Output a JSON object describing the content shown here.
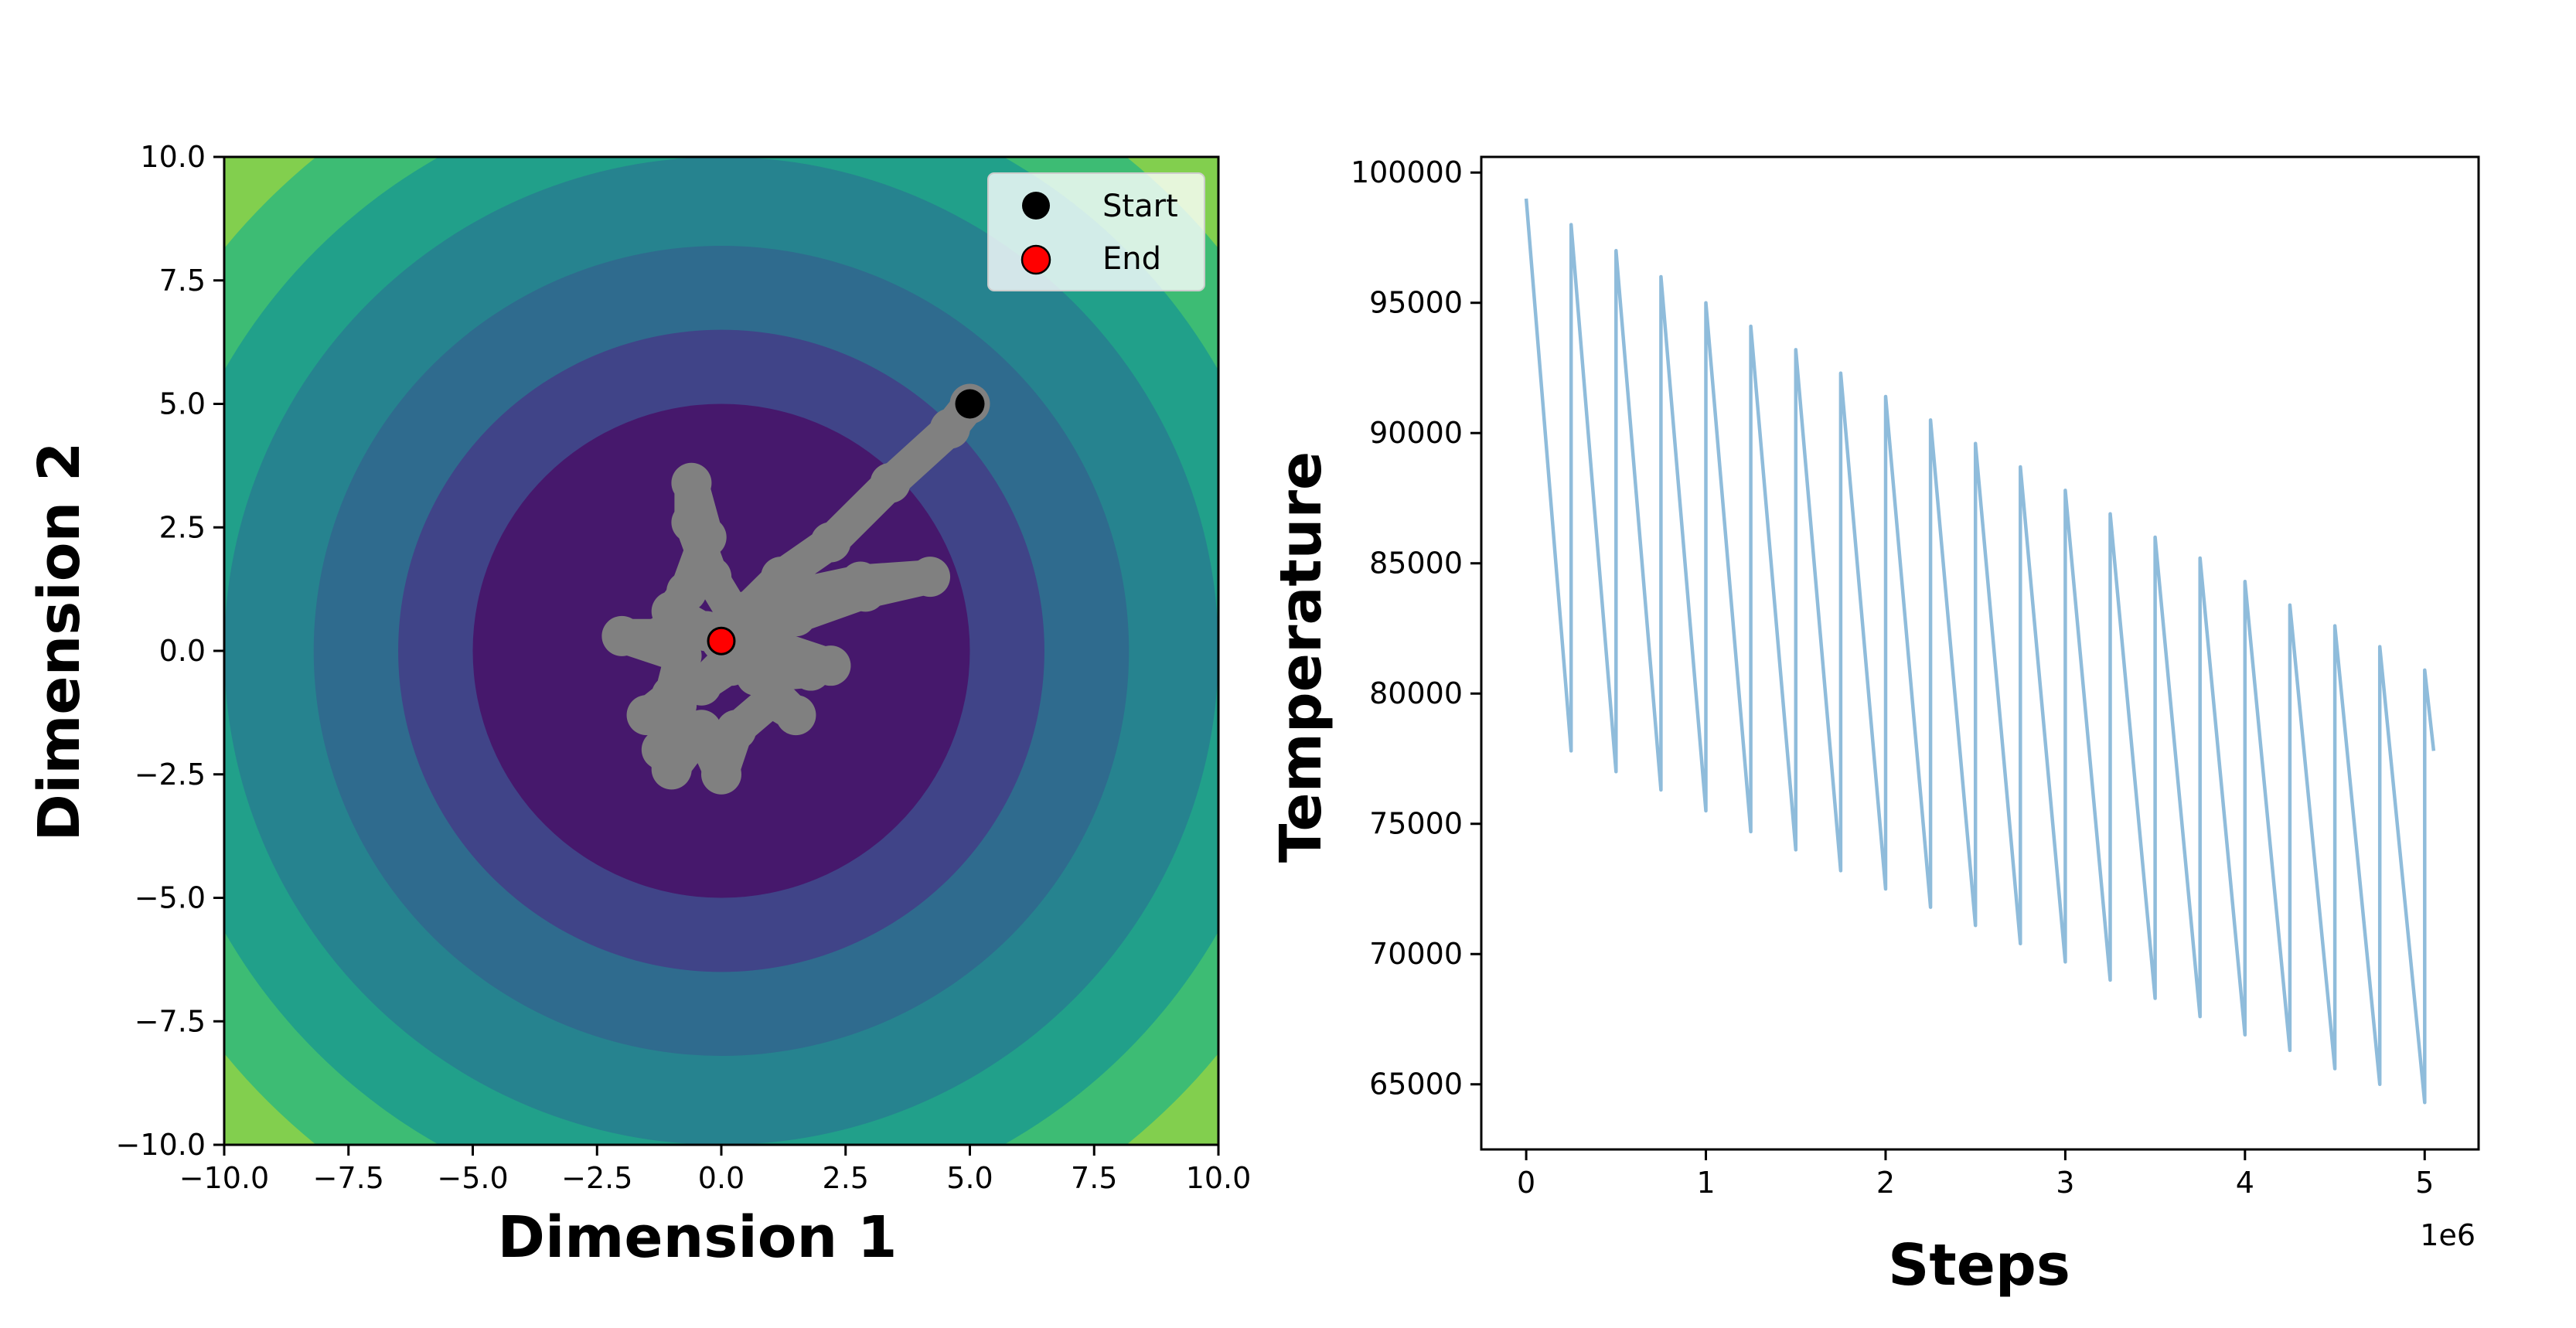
{
  "chart_data": [
    {
      "type": "contour",
      "xlabel": "Dimension 1",
      "ylabel": "Dimension 2",
      "xlim": [
        -10,
        10
      ],
      "ylim": [
        -10,
        10
      ],
      "xticks": [
        "−10.0",
        "−7.5",
        "−5.0",
        "−2.5",
        "0.0",
        "2.5",
        "5.0",
        "7.5",
        "10.0"
      ],
      "yticks": [
        "−10.0",
        "−7.5",
        "−5.0",
        "−2.5",
        "0.0",
        "2.5",
        "5.0",
        "7.5",
        "10.0"
      ],
      "xtick_values": [
        -10,
        -7.5,
        -5,
        -2.5,
        0,
        2.5,
        5,
        7.5,
        10
      ],
      "ytick_values": [
        -10,
        -7.5,
        -5,
        -2.5,
        0,
        2.5,
        5,
        7.5,
        10
      ],
      "colormap": "viridis",
      "contour_level_radii": [
        14.1,
        12.9,
        11.5,
        10,
        8.2,
        6.5,
        5
      ],
      "contour_colors": [
        "#fde725",
        "#7ad151",
        "#22a884",
        "#2a788e",
        "#414487",
        "#3b528b",
        "#440154"
      ],
      "contour_fills": [
        "#e6e125",
        "#82cf4e",
        "#3dbc74",
        "#21a08a",
        "#26838f",
        "#2f6b8e",
        "#404488",
        "#46186c"
      ],
      "path_color": "#808080",
      "path": [
        [
          5.0,
          5.0
        ],
        [
          4.6,
          4.5
        ],
        [
          3.4,
          3.4
        ],
        [
          2.2,
          2.2
        ],
        [
          1.2,
          1.5
        ],
        [
          0.5,
          0.8
        ],
        [
          1.4,
          1.1
        ],
        [
          2.8,
          1.4
        ],
        [
          4.2,
          1.5
        ],
        [
          2.9,
          1.2
        ],
        [
          1.5,
          0.7
        ],
        [
          0.4,
          0.5
        ],
        [
          -0.2,
          1.5
        ],
        [
          -0.6,
          2.6
        ],
        [
          -0.6,
          3.4
        ],
        [
          -0.3,
          2.3
        ],
        [
          -0.7,
          1.2
        ],
        [
          -1.0,
          0.8
        ],
        [
          -0.3,
          0.4
        ],
        [
          -1.2,
          0.3
        ],
        [
          -2.0,
          0.3
        ],
        [
          -0.8,
          -0.1
        ],
        [
          -1.0,
          -0.9
        ],
        [
          -1.5,
          -1.3
        ],
        [
          -0.9,
          -1.1
        ],
        [
          -1.2,
          -2.0
        ],
        [
          -1.0,
          -2.4
        ],
        [
          -0.4,
          -1.6
        ],
        [
          0.0,
          -2.5
        ],
        [
          0.3,
          -1.6
        ],
        [
          1.0,
          -1.0
        ],
        [
          1.5,
          -1.3
        ],
        [
          0.7,
          -0.5
        ],
        [
          1.8,
          -0.4
        ],
        [
          2.2,
          -0.3
        ],
        [
          1.0,
          0.1
        ],
        [
          0.3,
          0.0
        ],
        [
          -0.4,
          -0.7
        ],
        [
          0.2,
          -0.3
        ],
        [
          0.0,
          0.2
        ]
      ],
      "series": [
        {
          "name": "Start",
          "marker_color": "#000000",
          "x": [
            5.0
          ],
          "y": [
            5.0
          ]
        },
        {
          "name": "End",
          "marker_color": "#ff0000",
          "x": [
            0.0
          ],
          "y": [
            0.2
          ]
        }
      ],
      "legend": "top-right"
    },
    {
      "type": "line",
      "xlabel": "Steps",
      "ylabel": "Temperature",
      "xlim": [
        -250000,
        5300000
      ],
      "ylim": [
        62500,
        100600
      ],
      "xticks": [
        "0",
        "1",
        "2",
        "3",
        "4",
        "5"
      ],
      "xtick_values": [
        0,
        1000000,
        2000000,
        3000000,
        4000000,
        5000000
      ],
      "x_offset_label": "1e6",
      "yticks": [
        "65000",
        "70000",
        "75000",
        "80000",
        "85000",
        "90000",
        "95000",
        "100000"
      ],
      "ytick_values": [
        65000,
        70000,
        75000,
        80000,
        85000,
        90000,
        95000,
        100000
      ],
      "line_color": "#8fbcdb",
      "cycle_length": 250000,
      "peaks": [
        99000,
        98000,
        97000,
        96000,
        95000,
        94100,
        93200,
        92300,
        91400,
        90500,
        89600,
        88700,
        87800,
        86900,
        86000,
        85200,
        84300,
        83400,
        82600,
        81800,
        80900
      ],
      "troughs": [
        77800,
        77000,
        76300,
        75500,
        74700,
        74000,
        73200,
        72500,
        71800,
        71100,
        70400,
        69700,
        69000,
        68300,
        67600,
        66900,
        66300,
        65600,
        65000,
        64300
      ],
      "end": [
        5050000,
        77800
      ]
    }
  ]
}
